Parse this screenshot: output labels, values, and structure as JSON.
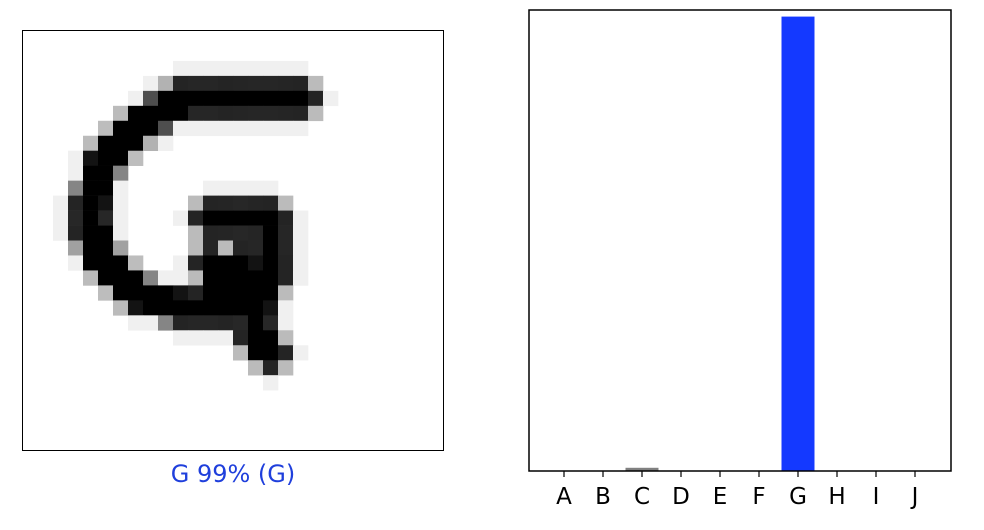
{
  "image_panel": {
    "caption": "G 99% (G)",
    "caption_color": "#1f3fdc",
    "grid_size": 28,
    "strokes": [
      [
        [
          13,
          4
        ],
        [
          10,
          4
        ],
        [
          7,
          6
        ],
        [
          5,
          8
        ],
        [
          4,
          11
        ],
        [
          4,
          13
        ],
        [
          5,
          15
        ],
        [
          7,
          17
        ],
        [
          10,
          18
        ],
        [
          13,
          18
        ],
        [
          16,
          16
        ]
      ],
      [
        [
          13,
          4
        ],
        [
          18,
          4
        ]
      ],
      [
        [
          12,
          12
        ],
        [
          16,
          12
        ],
        [
          16,
          15
        ],
        [
          15,
          18
        ],
        [
          15,
          20
        ],
        [
          16,
          21
        ]
      ],
      [
        [
          12,
          15
        ],
        [
          13,
          16
        ],
        [
          14,
          15
        ]
      ],
      [
        [
          14,
          16
        ],
        [
          12,
          17
        ]
      ]
    ]
  },
  "chart_data": {
    "type": "bar",
    "categories": [
      "A",
      "B",
      "C",
      "D",
      "E",
      "F",
      "G",
      "H",
      "I",
      "J"
    ],
    "values": [
      0,
      0,
      0.007,
      0,
      0,
      0,
      0.99,
      0,
      0,
      0
    ],
    "highlight_index": 6,
    "highlight_color": "#1439ff",
    "bar_color": "#808080",
    "ylim": [
      0,
      1
    ]
  }
}
